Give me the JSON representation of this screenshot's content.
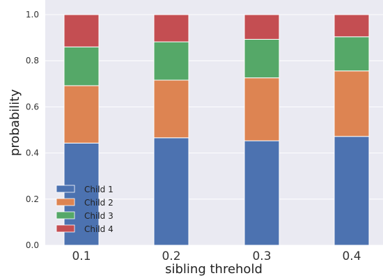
{
  "chart_data": {
    "type": "bar",
    "stacked": true,
    "title": "",
    "xlabel": "sibling threhold",
    "ylabel": "probability",
    "categories": [
      "0.1",
      "0.2",
      "0.3",
      "0.4"
    ],
    "ylim": [
      0,
      1.0
    ],
    "yticks": [
      "0.0",
      "0.2",
      "0.4",
      "0.6",
      "0.8",
      "1.0"
    ],
    "grid": true,
    "legend_position": "lower-left",
    "series": [
      {
        "name": "Child 1",
        "color": "#4c72b0",
        "values": [
          0.443,
          0.466,
          0.453,
          0.472
        ]
      },
      {
        "name": "Child 2",
        "color": "#dd8452",
        "values": [
          0.249,
          0.25,
          0.273,
          0.284
        ]
      },
      {
        "name": "Child 3",
        "color": "#55a868",
        "values": [
          0.168,
          0.166,
          0.167,
          0.148
        ]
      },
      {
        "name": "Child 4",
        "color": "#c44e52",
        "values": [
          0.14,
          0.118,
          0.107,
          0.096
        ]
      }
    ]
  }
}
